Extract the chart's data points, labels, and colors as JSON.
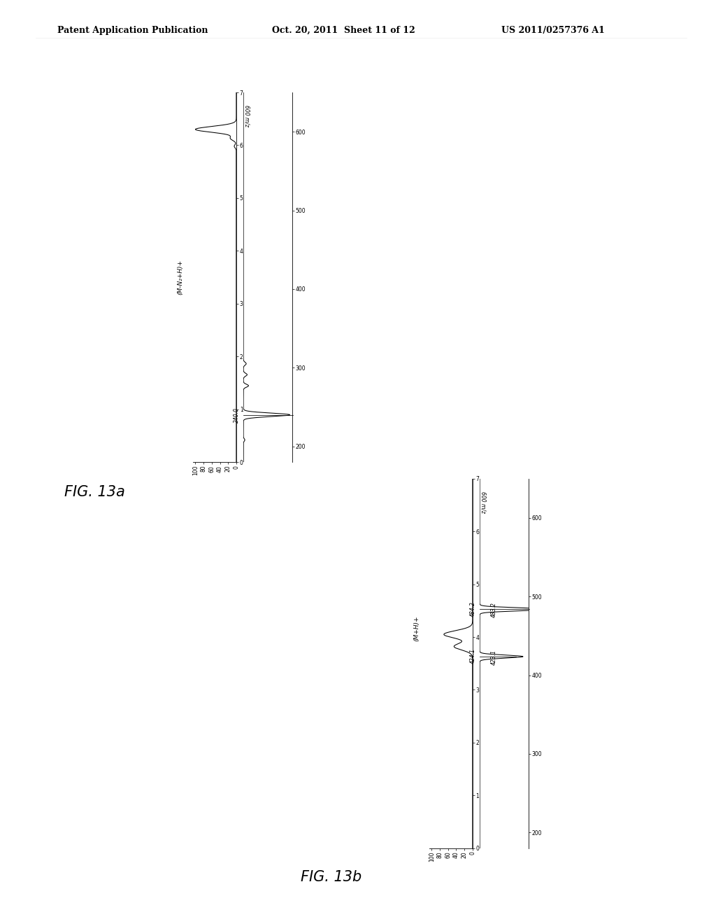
{
  "header_left": "Patent Application Publication",
  "header_mid": "Oct. 20, 2011  Sheet 11 of 12",
  "header_right": "US 2011/0257376 A1",
  "fig_a_label": "FIG. 13a",
  "fig_b_label": "FIG. 13b",
  "fig_a_annotation": "(M-N₂+H)+",
  "fig_a_peak_mz": "240.0",
  "fig_b_annotation": "(M+H)+",
  "fig_b_peak1": "484.2",
  "fig_b_peak2": "483.2",
  "fig_b_peak3": "424.1",
  "fig_b_peak4": "423.1",
  "background_color": "#ffffff",
  "line_color": "#000000",
  "chrom_a_peak_time": 6.3,
  "chrom_b_peak_time": 4.0,
  "ms_a_main_mz": 240.0,
  "ms_b_main_mz": 484.2,
  "ms_b_secondary_mz": 424.1
}
